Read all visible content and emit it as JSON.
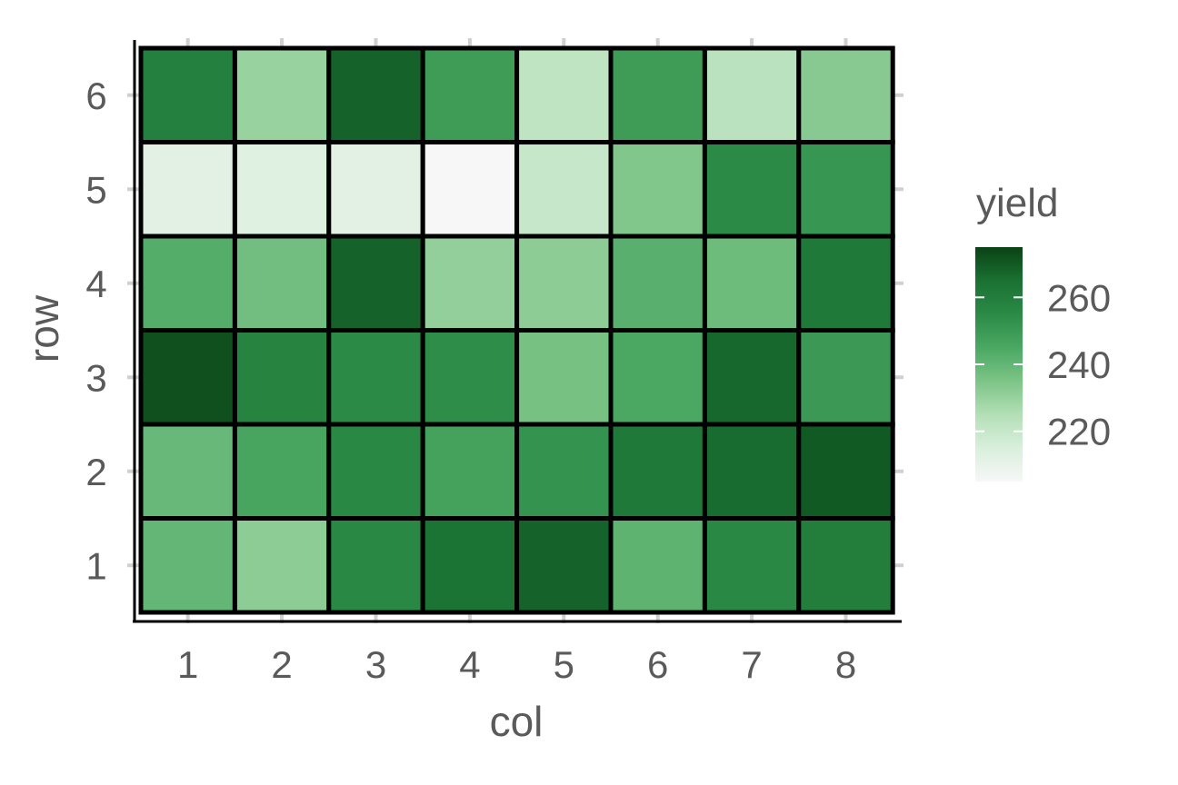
{
  "chart_data": {
    "type": "heatmap",
    "title": "",
    "xlabel": "col",
    "ylabel": "row",
    "x_categories": [
      "1",
      "2",
      "3",
      "4",
      "5",
      "6",
      "7",
      "8"
    ],
    "y_categories": [
      "1",
      "2",
      "3",
      "4",
      "5",
      "6"
    ],
    "values": [
      [
        240,
        232,
        256,
        264,
        268,
        241,
        256,
        260
      ],
      [
        239,
        246,
        256,
        247,
        252,
        262,
        266,
        270
      ],
      [
        272,
        258,
        255,
        254,
        236,
        245,
        267,
        250
      ],
      [
        243,
        237,
        268,
        231,
        232,
        242,
        238,
        262
      ],
      [
        212,
        213,
        212,
        205,
        220,
        234,
        255,
        251
      ],
      [
        259,
        230,
        268,
        249,
        222,
        249,
        223,
        233
      ]
    ],
    "legend": {
      "title": "yield",
      "ticks": [
        220,
        240,
        260
      ],
      "range": [
        205,
        275
      ],
      "colors": [
        "#f7f7f7",
        "#d9efdc",
        "#b3dfb6",
        "#7cc487",
        "#4aa863",
        "#2b8a46",
        "#1a7132",
        "#0a4216"
      ]
    },
    "grid": "off",
    "legend_position": "right",
    "tile_border_color": "#000000"
  }
}
